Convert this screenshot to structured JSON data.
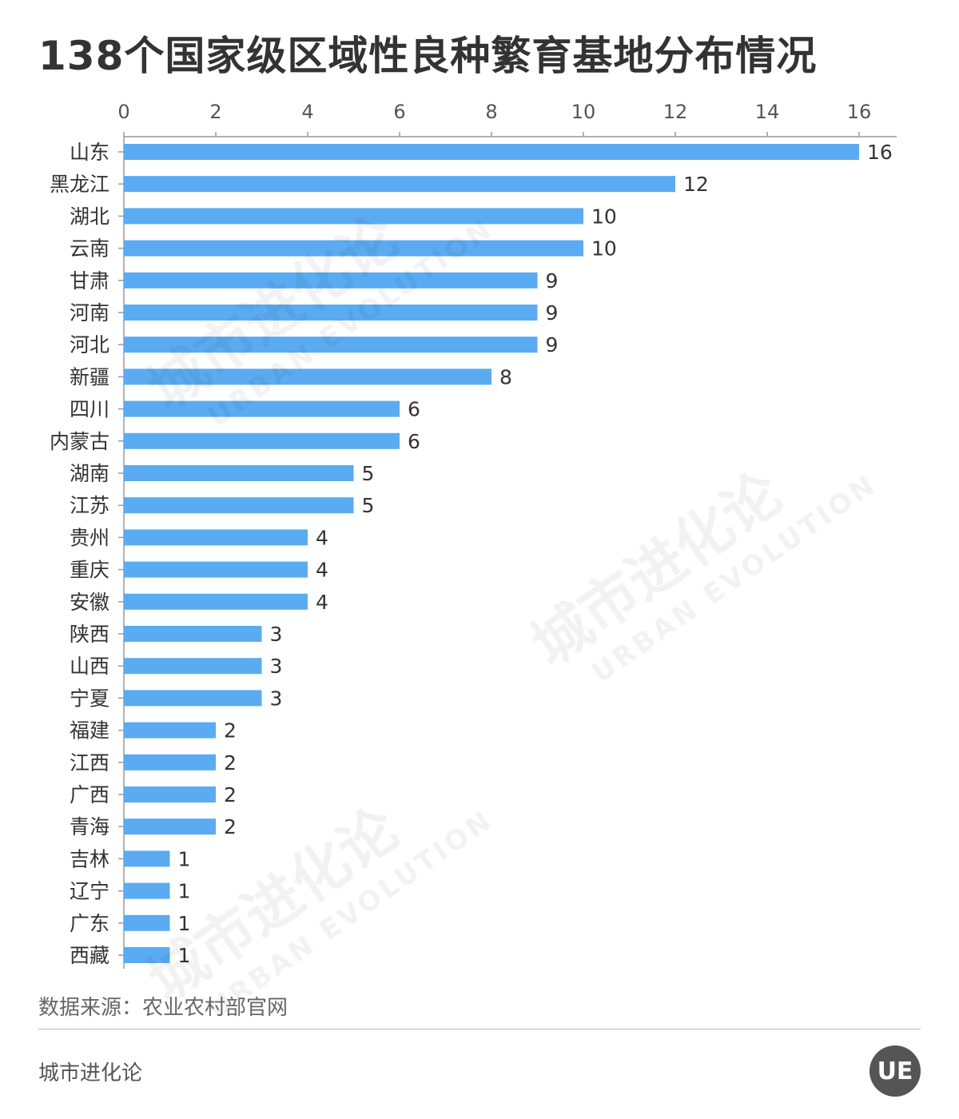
{
  "title": "138个国家级区域性良种繁育基地分布情况",
  "source": "数据来源：农业农村部官网",
  "brand": "城市进化论",
  "logo_text": "UE",
  "watermark": {
    "main": "城市进化论",
    "sub": "URBAN EVOLUTION"
  },
  "colors": {
    "bar": "#5AABF2",
    "axis": "#999999",
    "text": "#333333"
  },
  "chart_data": {
    "type": "bar",
    "orientation": "horizontal",
    "title": "138个国家级区域性良种繁育基地分布情况",
    "categories": [
      "山东",
      "黑龙江",
      "湖北",
      "云南",
      "甘肃",
      "河南",
      "河北",
      "新疆",
      "四川",
      "内蒙古",
      "湖南",
      "江苏",
      "贵州",
      "重庆",
      "安徽",
      "陕西",
      "山西",
      "宁夏",
      "福建",
      "江西",
      "广西",
      "青海",
      "吉林",
      "辽宁",
      "广东",
      "西藏"
    ],
    "values": [
      16,
      12,
      10,
      10,
      9,
      9,
      9,
      8,
      6,
      6,
      5,
      5,
      4,
      4,
      4,
      3,
      3,
      3,
      2,
      2,
      2,
      2,
      1,
      1,
      1,
      1
    ],
    "xlim": [
      0,
      16
    ],
    "xticks": [
      0,
      2,
      4,
      6,
      8,
      10,
      12,
      14,
      16
    ],
    "xaxis_position": "top",
    "data_labels": true,
    "grid": false,
    "legend": "none"
  }
}
